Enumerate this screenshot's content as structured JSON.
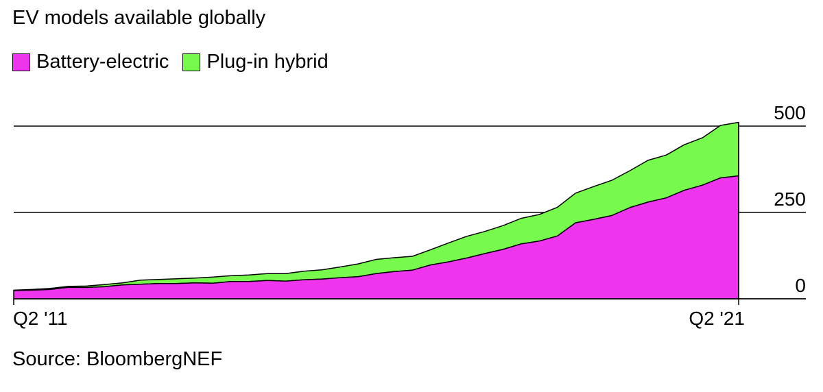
{
  "title": "EV models available globally",
  "source": "Source: BloombergNEF",
  "colors": {
    "battery_electric": "#ef34ee",
    "plug_in_hybrid": "#78f94e",
    "outline": "#000000"
  },
  "chart_data": {
    "type": "area",
    "stacked": true,
    "title": "EV models available globally",
    "x": [
      "Q2 '11",
      "Q3 '11",
      "Q4 '11",
      "Q1 '12",
      "Q2 '12",
      "Q3 '12",
      "Q4 '12",
      "Q1 '13",
      "Q2 '13",
      "Q3 '13",
      "Q4 '13",
      "Q1 '14",
      "Q2 '14",
      "Q3 '14",
      "Q4 '14",
      "Q1 '15",
      "Q2 '15",
      "Q3 '15",
      "Q4 '15",
      "Q1 '16",
      "Q2 '16",
      "Q3 '16",
      "Q4 '16",
      "Q1 '17",
      "Q2 '17",
      "Q3 '17",
      "Q4 '17",
      "Q1 '18",
      "Q2 '18",
      "Q3 '18",
      "Q4 '18",
      "Q1 '19",
      "Q2 '19",
      "Q3 '19",
      "Q4 '19",
      "Q1 '20",
      "Q2 '20",
      "Q3 '20",
      "Q4 '20",
      "Q1 '21",
      "Q2 '21"
    ],
    "x_tick_labels": [
      "Q2 '11",
      "Q2 '21"
    ],
    "series": [
      {
        "name": "Battery-electric",
        "color": "#ef34ee",
        "values": [
          24,
          25,
          27,
          33,
          33,
          35,
          40,
          42,
          44,
          44,
          46,
          45,
          50,
          50,
          53,
          51,
          55,
          57,
          61,
          64,
          73,
          79,
          83,
          98,
          107,
          118,
          131,
          143,
          159,
          167,
          182,
          220,
          230,
          241,
          264,
          280,
          292,
          314,
          329,
          350,
          356
        ]
      },
      {
        "name": "Plug-in hybrid",
        "color": "#78f94e",
        "values": [
          1,
          2,
          3,
          3,
          4,
          6,
          6,
          12,
          12,
          14,
          14,
          18,
          17,
          19,
          20,
          22,
          25,
          27,
          31,
          37,
          41,
          40,
          40,
          44,
          55,
          63,
          64,
          69,
          74,
          77,
          83,
          86,
          95,
          102,
          107,
          121,
          124,
          132,
          137,
          152,
          155
        ]
      }
    ],
    "y_ticks": [
      0,
      250,
      500
    ],
    "ylim": [
      0,
      500
    ],
    "grid": true,
    "legend_position": "top-left"
  }
}
